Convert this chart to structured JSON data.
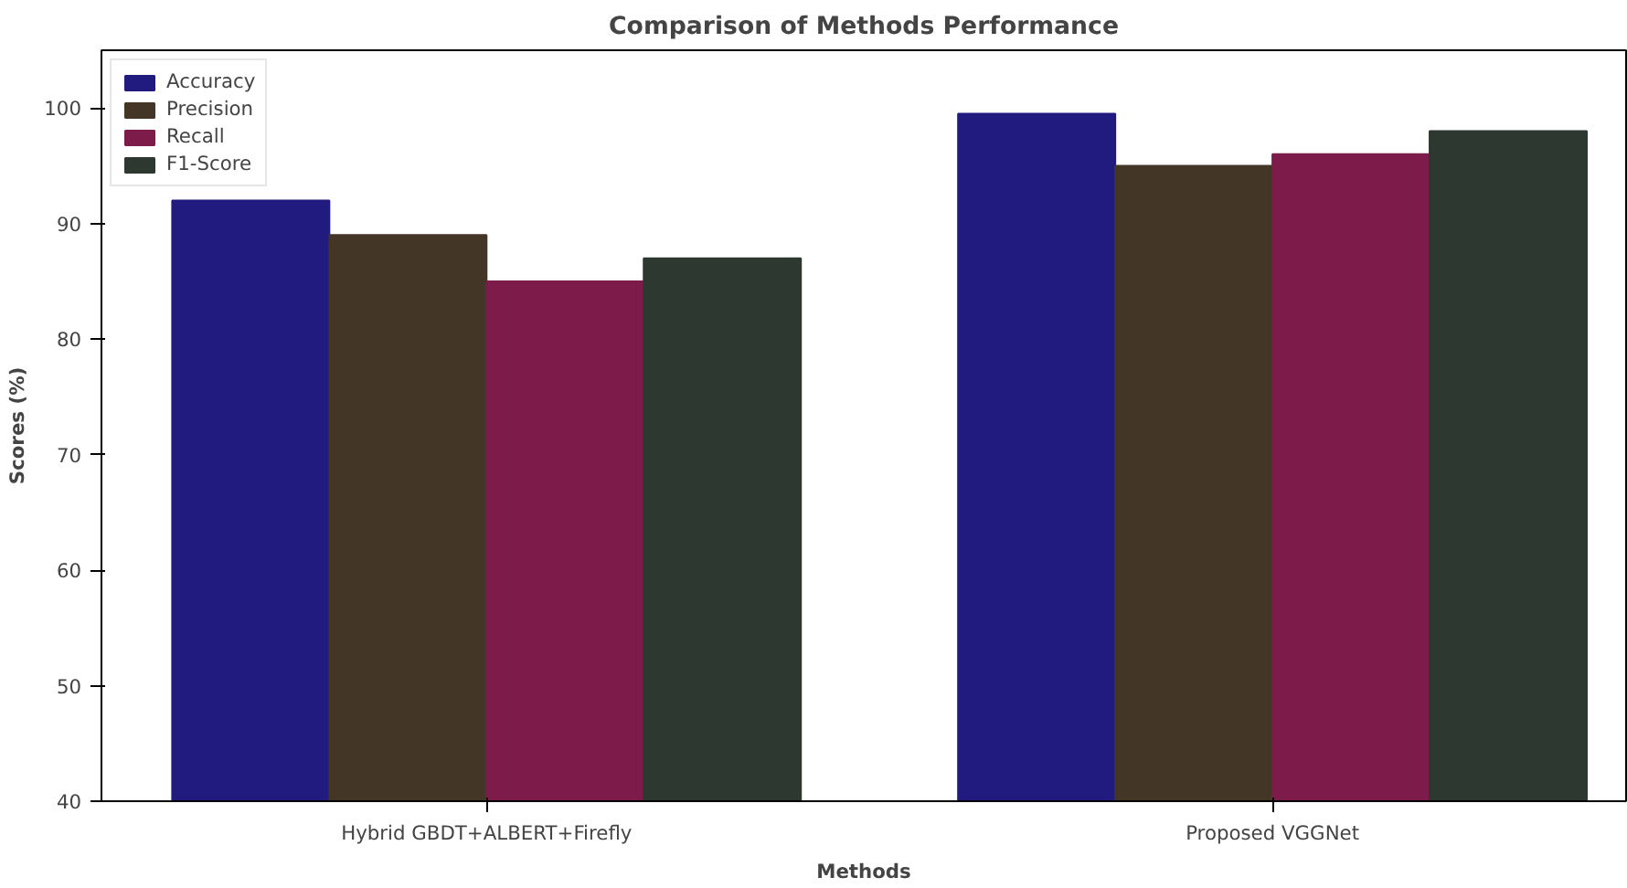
{
  "chart_data": {
    "type": "bar",
    "title": "Comparison of Methods Performance",
    "xlabel": "Methods",
    "ylabel": "Scores (%)",
    "categories": [
      "Hybrid GBDT+ALBERT+Firefly",
      "Proposed VGGNet"
    ],
    "series": [
      {
        "name": "Accuracy",
        "color": "#211b80",
        "values": [
          92,
          99.5
        ]
      },
      {
        "name": "Precision",
        "color": "#433627",
        "values": [
          89,
          95
        ]
      },
      {
        "name": "Recall",
        "color": "#7d1c4a",
        "values": [
          85,
          96
        ]
      },
      {
        "name": "F1-Score",
        "color": "#2c3830",
        "values": [
          87,
          98
        ]
      }
    ],
    "ylim": [
      40,
      105
    ],
    "yticks": [
      40,
      50,
      60,
      70,
      80,
      90,
      100
    ],
    "grid": false,
    "legend": "top left"
  }
}
